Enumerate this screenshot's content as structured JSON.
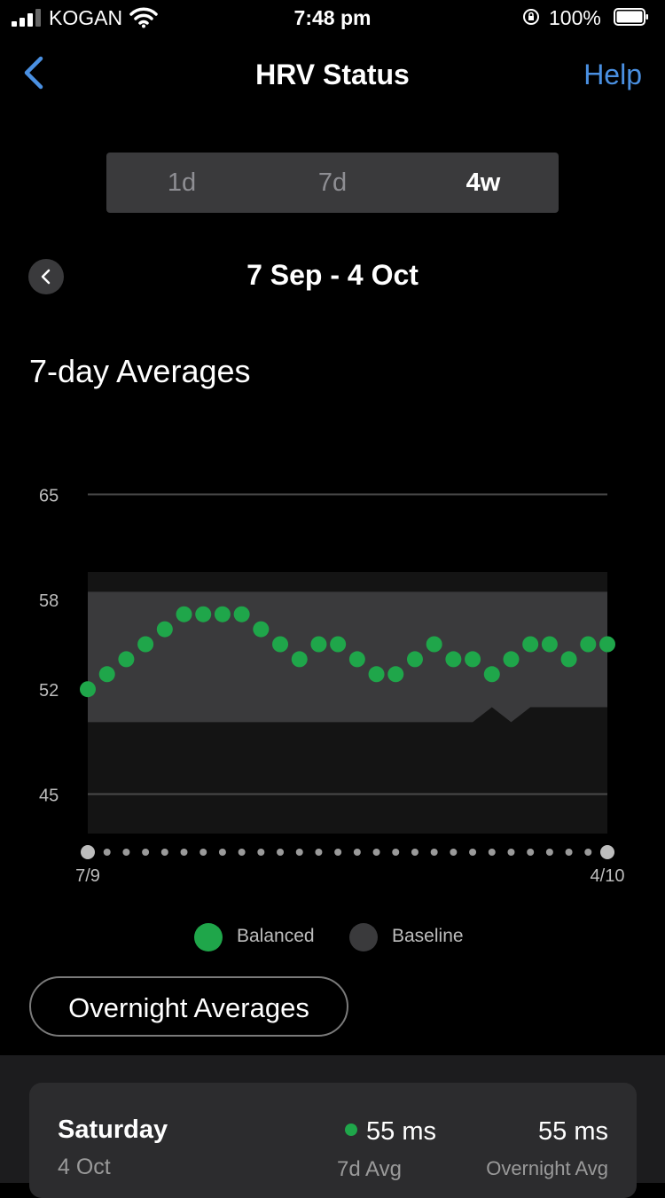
{
  "status_bar": {
    "carrier": "KOGAN",
    "time": "7:48 pm",
    "battery": "100%"
  },
  "nav": {
    "title": "HRV Status",
    "help": "Help"
  },
  "segments": [
    {
      "label": "1d",
      "active": false
    },
    {
      "label": "7d",
      "active": false
    },
    {
      "label": "4w",
      "active": true
    }
  ],
  "date_range": "7 Sep - 4 Oct",
  "section_title": "7-day Averages",
  "chart_data": {
    "type": "scatter",
    "title": "",
    "x_start_label": "7/9",
    "x_end_label": "4/10",
    "y_ticks": [
      65,
      58,
      52,
      45
    ],
    "ylim": [
      42.2,
      65
    ],
    "series": [
      {
        "name": "Balanced",
        "color": "#1fa64a",
        "x_index": [
          0,
          1,
          2,
          3,
          4,
          5,
          6,
          7,
          8,
          9,
          10,
          11,
          12,
          13,
          14,
          15,
          16,
          17,
          18,
          19,
          20,
          21,
          22,
          23,
          24,
          25,
          26,
          27
        ],
        "values": [
          52,
          53,
          54,
          55,
          56,
          57,
          57,
          57,
          57,
          56,
          55,
          54,
          55,
          55,
          54,
          53,
          53,
          54,
          55,
          54,
          54,
          53,
          54,
          55,
          55,
          54,
          55,
          55
        ]
      }
    ],
    "baseline_band": {
      "name": "Baseline",
      "color": "#3a3a3c",
      "upper": 58.5,
      "lower": [
        49.8,
        49.8,
        49.8,
        49.8,
        49.8,
        49.8,
        49.8,
        49.8,
        49.8,
        49.8,
        49.8,
        49.8,
        49.8,
        49.8,
        49.8,
        49.8,
        49.8,
        49.8,
        49.8,
        49.8,
        49.8,
        50.8,
        49.8,
        50.8,
        50.8,
        50.8,
        50.8,
        50.8
      ]
    },
    "legend": [
      "Balanced",
      "Baseline"
    ],
    "grid": true
  },
  "overnight_button": "Overnight Averages",
  "summary": {
    "day": "Saturday",
    "date": "4 Oct",
    "avg7_value": "55 ms",
    "avg7_label": "7d Avg",
    "overnight_value": "55 ms",
    "overnight_label": "Overnight Avg"
  },
  "colors": {
    "accent": "#4a90e2",
    "balanced": "#1fa64a",
    "baseline": "#3a3a3c"
  }
}
